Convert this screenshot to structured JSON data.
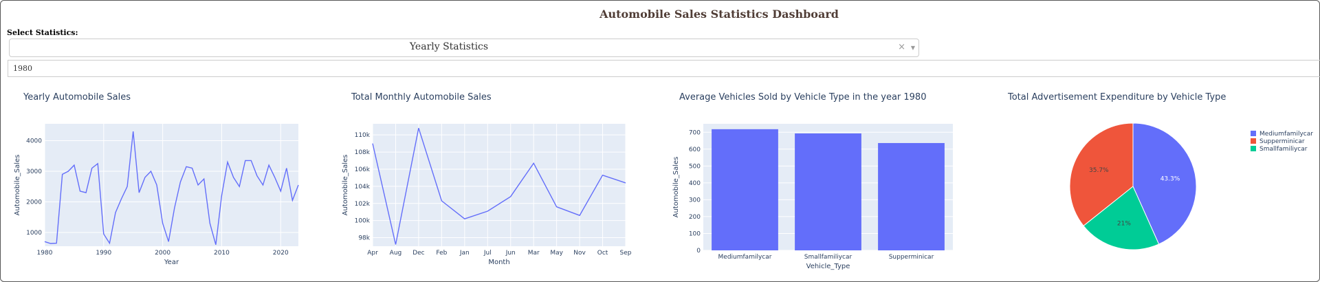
{
  "header": {
    "title": "Automobile Sales Statistics Dashboard"
  },
  "controls": {
    "select_label": "Select Statistics:",
    "statistics_dropdown": {
      "value": "Yearly Statistics",
      "clear_symbol": "×",
      "caret_symbol": "▼"
    },
    "year_input": {
      "value": "1980"
    }
  },
  "chart_data": [
    {
      "type": "line",
      "title": "Yearly Automobile Sales",
      "xlabel": "Year",
      "ylabel": "Automobile_Sales",
      "xlim": [
        1980,
        2023
      ],
      "ylim": [
        550,
        4550
      ],
      "xticks": [
        1980,
        1990,
        2000,
        2010,
        2020
      ],
      "yticks": [
        1000,
        2000,
        3000,
        4000
      ],
      "x": [
        1980,
        1981,
        1982,
        1983,
        1984,
        1985,
        1986,
        1987,
        1988,
        1989,
        1990,
        1991,
        1992,
        1993,
        1994,
        1995,
        1996,
        1997,
        1998,
        1999,
        2000,
        2001,
        2002,
        2003,
        2004,
        2005,
        2006,
        2007,
        2008,
        2009,
        2010,
        2011,
        2012,
        2013,
        2014,
        2015,
        2016,
        2017,
        2018,
        2019,
        2020,
        2021,
        2022,
        2023
      ],
      "y": [
        700,
        640,
        650,
        2900,
        3000,
        3200,
        2350,
        2300,
        3100,
        3250,
        950,
        650,
        1650,
        2100,
        2500,
        4300,
        2300,
        2800,
        3000,
        2550,
        1300,
        700,
        1800,
        2650,
        3150,
        3100,
        2550,
        2750,
        1300,
        600,
        2200,
        3300,
        2800,
        2500,
        3350,
        3350,
        2850,
        2550,
        3200,
        2800,
        2350,
        3100,
        2050,
        2550
      ],
      "color": "#636efa"
    },
    {
      "type": "line",
      "title": "Total Monthly Automobile Sales",
      "xlabel": "Month",
      "ylabel": "Automobile_Sales",
      "categories": [
        "Apr",
        "Aug",
        "Dec",
        "Feb",
        "Jan",
        "Jul",
        "Jun",
        "Mar",
        "May",
        "Nov",
        "Oct",
        "Sep"
      ],
      "values": [
        109000,
        97200,
        110800,
        102300,
        100200,
        101100,
        102800,
        106700,
        101600,
        100600,
        105300,
        104400
      ],
      "ylim": [
        97000,
        111300
      ],
      "yticks": [
        98000,
        100000,
        102000,
        104000,
        106000,
        108000,
        110000
      ],
      "ytick_labels": [
        "98k",
        "100k",
        "102k",
        "104k",
        "106k",
        "108k",
        "110k"
      ],
      "color": "#636efa"
    },
    {
      "type": "bar",
      "title": "Average Vehicles Sold by Vehicle Type in the year 1980",
      "xlabel": "Vehicle_Type",
      "ylabel": "Automobile_Sales",
      "categories": [
        "Mediumfamilycar",
        "Smallfamiliycar",
        "Supperminicar"
      ],
      "values": [
        718,
        693,
        636
      ],
      "ylim": [
        0,
        750
      ],
      "yticks": [
        0,
        100,
        200,
        300,
        400,
        500,
        600,
        700
      ],
      "color": "#636efa"
    },
    {
      "type": "pie",
      "title": "Total Advertisement Expenditure by Vehicle Type",
      "labels": [
        "Mediumfamilycar",
        "Smallfamiliycar",
        "Supperminicar"
      ],
      "values": [
        43.3,
        21.0,
        35.7
      ],
      "slice_labels": [
        "43.3%",
        "21%",
        "35.7%"
      ],
      "colors": [
        "#636efa",
        "#00cc96",
        "#ef553b"
      ],
      "legend": [
        {
          "label": "Mediumfamilycar",
          "color": "#636efa"
        },
        {
          "label": "Supperminicar",
          "color": "#ef553b"
        },
        {
          "label": "Smallfamiliycar",
          "color": "#00cc96"
        }
      ],
      "legend_position": "right"
    }
  ]
}
